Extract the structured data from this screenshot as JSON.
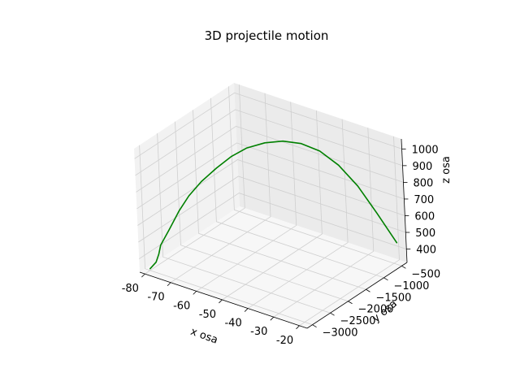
{
  "chart_data": {
    "type": "line",
    "projection": "3d",
    "title": "3D projectile motion",
    "xlabel": "x osa",
    "ylabel": "y osa",
    "zlabel": "z osa",
    "xlim": [
      -82,
      -17
    ],
    "ylim": [
      -3150,
      -350
    ],
    "zlim": [
      320,
      1060
    ],
    "xticks": [
      -80,
      -70,
      -60,
      -50,
      -40,
      -30,
      -20
    ],
    "yticks": [
      -3000,
      -2500,
      -2000,
      -1500,
      -1000,
      -500
    ],
    "zticks": [
      400,
      500,
      600,
      700,
      800,
      900,
      1000
    ],
    "grid": true,
    "series": [
      {
        "color": "#008000",
        "x": [
          -80,
          -79,
          -79.5,
          -80.5,
          -79,
          -77,
          -75,
          -72,
          -68,
          -64,
          -60,
          -55,
          -50,
          -45,
          -40,
          -35,
          -30,
          -25,
          -20
        ],
        "y": [
          -3000,
          -2900,
          -2780,
          -2650,
          -2500,
          -2350,
          -2200,
          -2050,
          -1900,
          -1750,
          -1600,
          -1450,
          -1300,
          -1150,
          -1000,
          -850,
          -700,
          -550,
          -400
        ],
        "z": [
          330,
          360,
          390,
          420,
          500,
          600,
          680,
          760,
          840,
          910,
          960,
          995,
          1010,
          1000,
          960,
          880,
          760,
          600,
          430
        ]
      }
    ]
  }
}
